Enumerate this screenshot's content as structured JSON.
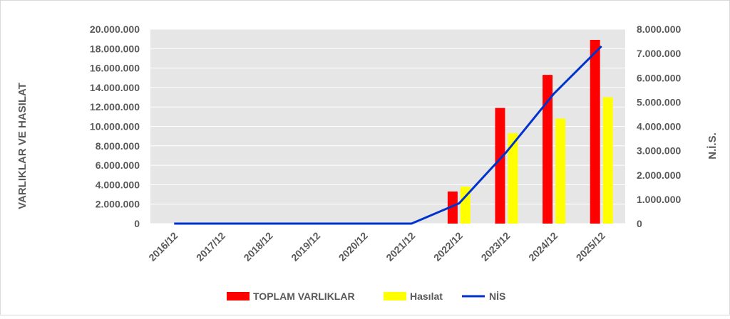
{
  "chart_data": {
    "type": "bar",
    "categories": [
      "2016/12",
      "2017/12",
      "2018/12",
      "2019/12",
      "2020/12",
      "2021/12",
      "2022/12",
      "2023/12",
      "2024/12",
      "2025/12"
    ],
    "series": [
      {
        "name": "TOPLAM VARLIKLAR",
        "type": "bar",
        "axis": "left",
        "color": "#FF0000",
        "values": [
          0,
          0,
          0,
          0,
          0,
          0,
          3300000,
          11900000,
          15300000,
          18900000
        ]
      },
      {
        "name": "Hasılat",
        "type": "bar",
        "axis": "left",
        "color": "#FFFF00",
        "values": [
          0,
          0,
          0,
          0,
          0,
          0,
          3800000,
          9300000,
          10800000,
          13000000
        ]
      },
      {
        "name": "NİS",
        "type": "line",
        "axis": "right",
        "color": "#0033CC",
        "values": [
          0,
          0,
          0,
          0,
          0,
          0,
          830000,
          2950000,
          5350000,
          7300000
        ]
      }
    ],
    "ylabel": "VARLIKLAR VE HASILAT",
    "y2label": "N.İ.S.",
    "ylim": [
      0,
      20000000
    ],
    "y2lim": [
      0,
      8000000
    ],
    "yticks": [
      "0",
      "2.000.000",
      "4.000.000",
      "6.000.000",
      "8.000.000",
      "10.000.000",
      "12.000.000",
      "14.000.000",
      "16.000.000",
      "18.000.000",
      "20.000.000"
    ],
    "y2ticks": [
      "0",
      "1.000.000",
      "2.000.000",
      "3.000.000",
      "4.000.000",
      "5.000.000",
      "6.000.000",
      "7.000.000",
      "8.000.000"
    ],
    "grid": true,
    "legend": "bottom",
    "plot_background": "#E6E6E6"
  }
}
